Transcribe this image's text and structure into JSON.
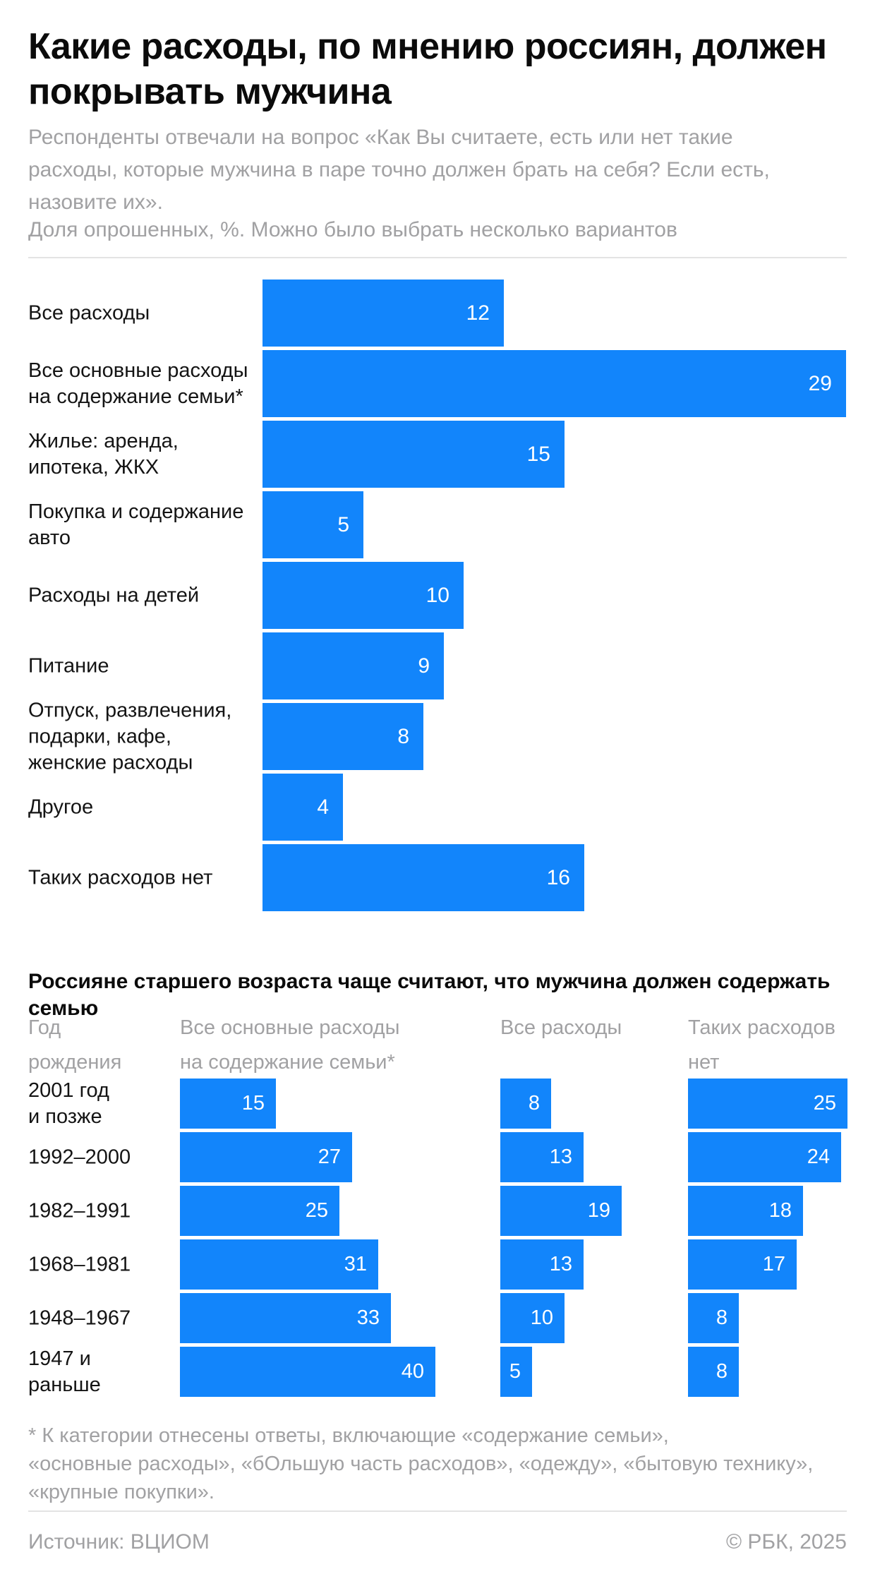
{
  "page": {
    "title": "Какие расходы, по мнению россиян, должен покрывать мужчина",
    "subtitle": "Респонденты отвечали на вопрос «Как Вы считаете, есть или нет такие\nрасходы, которые мужчина в паре точно должен брать на себя? Если есть,\nназовите их».",
    "note_line": "Доля опрошенных, %. Можно было выбрать несколько вариантов",
    "footnote": "* К категории отнесены ответы, включающие «содержание семьи»,\n«основные расходы», «бОльшую часть расходов», «одежду», «бытовую технику»,\n«крупные покупки».",
    "source": "Источник: ВЦИОМ",
    "copyright": "© РБК, 2025",
    "accent_color": "#1285FB"
  },
  "chart_data": [
    {
      "type": "bar",
      "orientation": "horizontal",
      "title": "Какие расходы, по мнению россиян, должен покрывать мужчина",
      "subtitle": "Доля опрошенных, %. Можно было выбрать несколько вариантов",
      "unit": "%",
      "xlim": [
        0,
        29
      ],
      "grid": false,
      "bar_color": "#1285FB",
      "categories": [
        "Все расходы",
        "Все основные расходы\nна содержание семьи*",
        "Жилье: аренда,\nипотека, ЖКХ",
        "Покупка и содержание\nавто",
        "Расходы на детей",
        "Питание",
        "Отпуск, развлечения,\nподарки, кафе,\nженские расходы",
        "Другое",
        "Таких расходов нет"
      ],
      "values": [
        12,
        29,
        15,
        5,
        10,
        9,
        8,
        4,
        16
      ]
    },
    {
      "type": "bar",
      "orientation": "horizontal",
      "title": "Россияне старшего возраста чаще считают, что мужчина должен содержать семью",
      "unit": "%",
      "xlim": [
        0,
        40
      ],
      "grid": false,
      "bar_color": "#1285FB",
      "row_axis_label": "Год\nрождения",
      "categories": [
        "2001 год\nи позже",
        "1992–2000",
        "1982–1991",
        "1968–1981",
        "1948–1967",
        "1947 и раньше"
      ],
      "series": [
        {
          "name": "Все основные расходы\nна содержание семьи*",
          "values": [
            15,
            27,
            25,
            31,
            33,
            40
          ]
        },
        {
          "name": "Все расходы",
          "values": [
            8,
            13,
            19,
            13,
            10,
            5
          ]
        },
        {
          "name": "Таких расходов нет",
          "values": [
            25,
            24,
            18,
            17,
            8,
            8
          ]
        }
      ]
    }
  ]
}
